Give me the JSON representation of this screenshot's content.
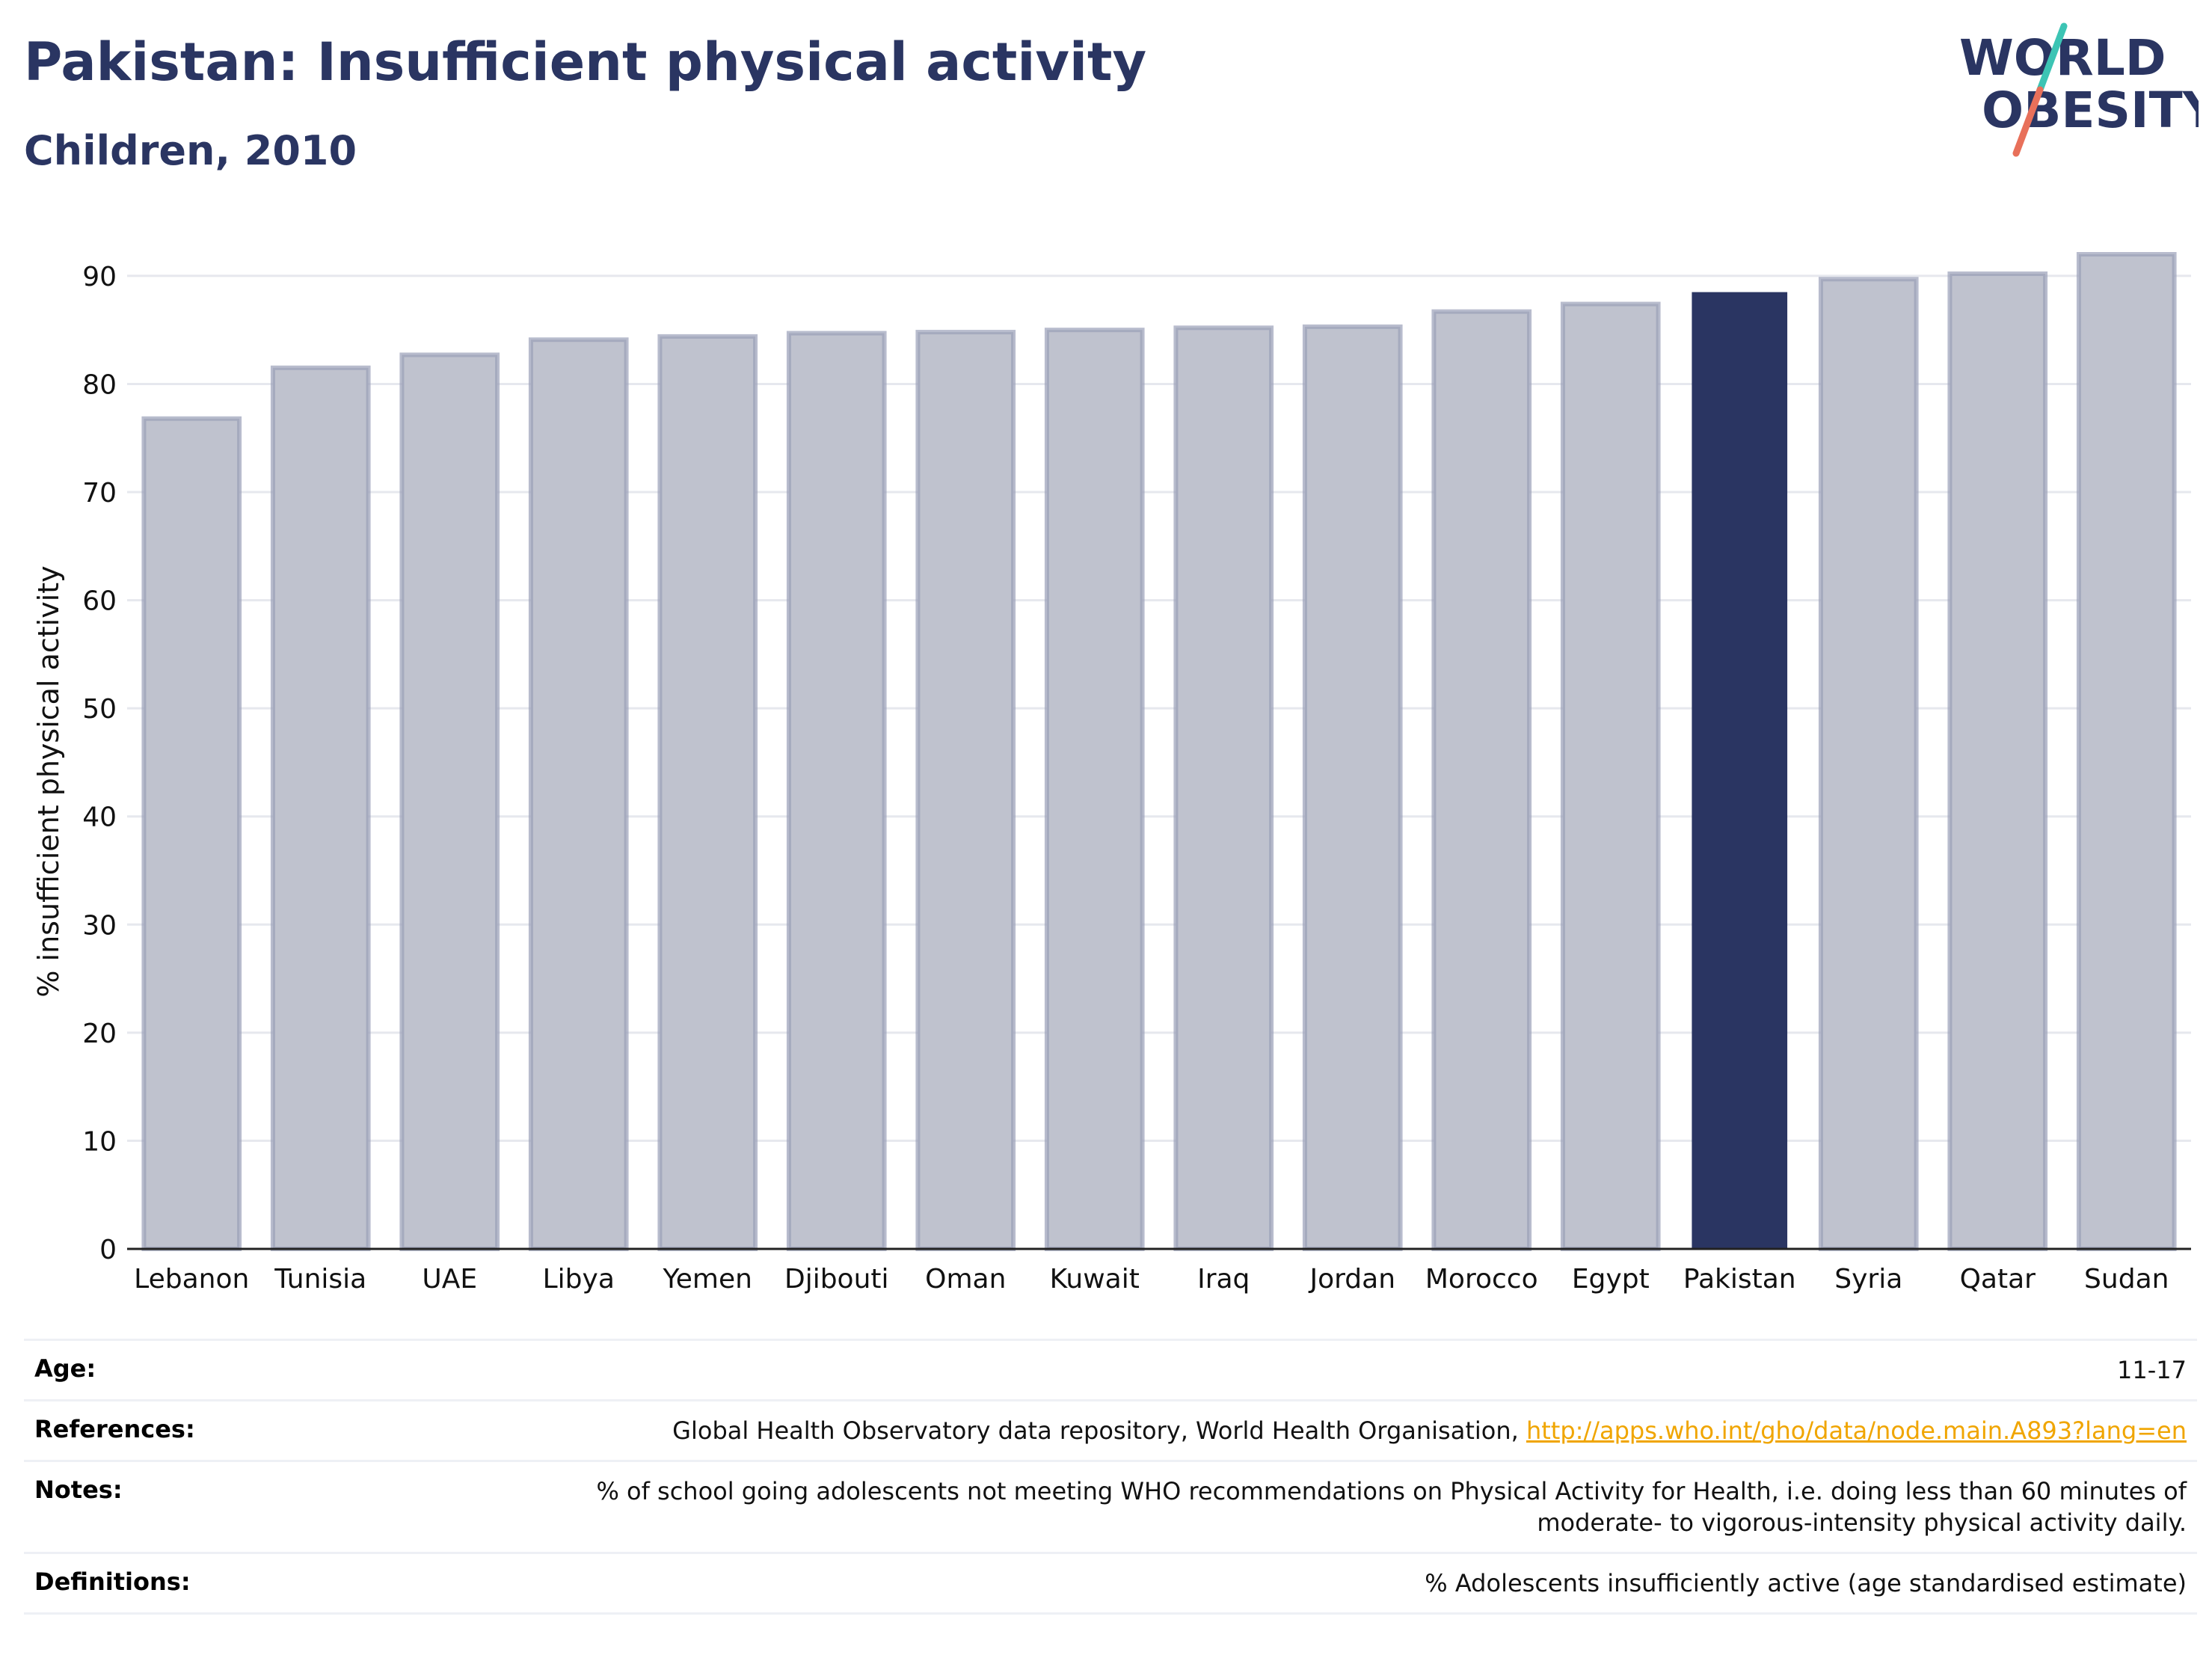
{
  "header": {
    "title": "Pakistan: Insufficient physical activity",
    "subtitle": "Children, 2010"
  },
  "logo": {
    "line1": "WORLD",
    "line2": "OBESITY",
    "text_color": "#2a3562",
    "slash_top_color": "#3cc4b4",
    "slash_bottom_color": "#e8705a"
  },
  "chart_data": {
    "type": "bar",
    "categories": [
      "Lebanon",
      "Tunisia",
      "UAE",
      "Libya",
      "Yemen",
      "Djibouti",
      "Oman",
      "Kuwait",
      "Iraq",
      "Jordan",
      "Morocco",
      "Egypt",
      "Pakistan",
      "Syria",
      "Qatar",
      "Sudan"
    ],
    "values": [
      76.8,
      81.5,
      82.7,
      84.1,
      84.4,
      84.7,
      84.8,
      85.0,
      85.2,
      85.3,
      86.7,
      87.4,
      88.5,
      89.7,
      90.2,
      92.0
    ],
    "highlight": "Pakistan",
    "ylabel": "% insufficient physical activity",
    "ylim": [
      0,
      92
    ],
    "yticks": [
      0,
      10,
      20,
      30,
      40,
      50,
      60,
      70,
      80,
      90
    ],
    "grid": true,
    "colors": {
      "bar": "#bfc2ce",
      "bar_outline": "#9aa0b8",
      "highlight": "#2a3562",
      "grid": "#e6e8ee",
      "axis": "#222222"
    }
  },
  "info_table": {
    "age": {
      "label": "Age:",
      "value": "11-17"
    },
    "references": {
      "label": "References:",
      "text": "Global Health Observatory data repository, World Health Organisation,",
      "link": "http://apps.who.int/gho/data/node.main.A893?lang=en"
    },
    "notes": {
      "label": "Notes:",
      "value": "% of school going adolescents not meeting WHO recommendations on Physical Activity for Health, i.e. doing less than 60 minutes of moderate- to vigorous-intensity physical activity daily."
    },
    "definitions": {
      "label": "Definitions:",
      "value": "% Adolescents insufficiently active (age standardised estimate)"
    }
  }
}
